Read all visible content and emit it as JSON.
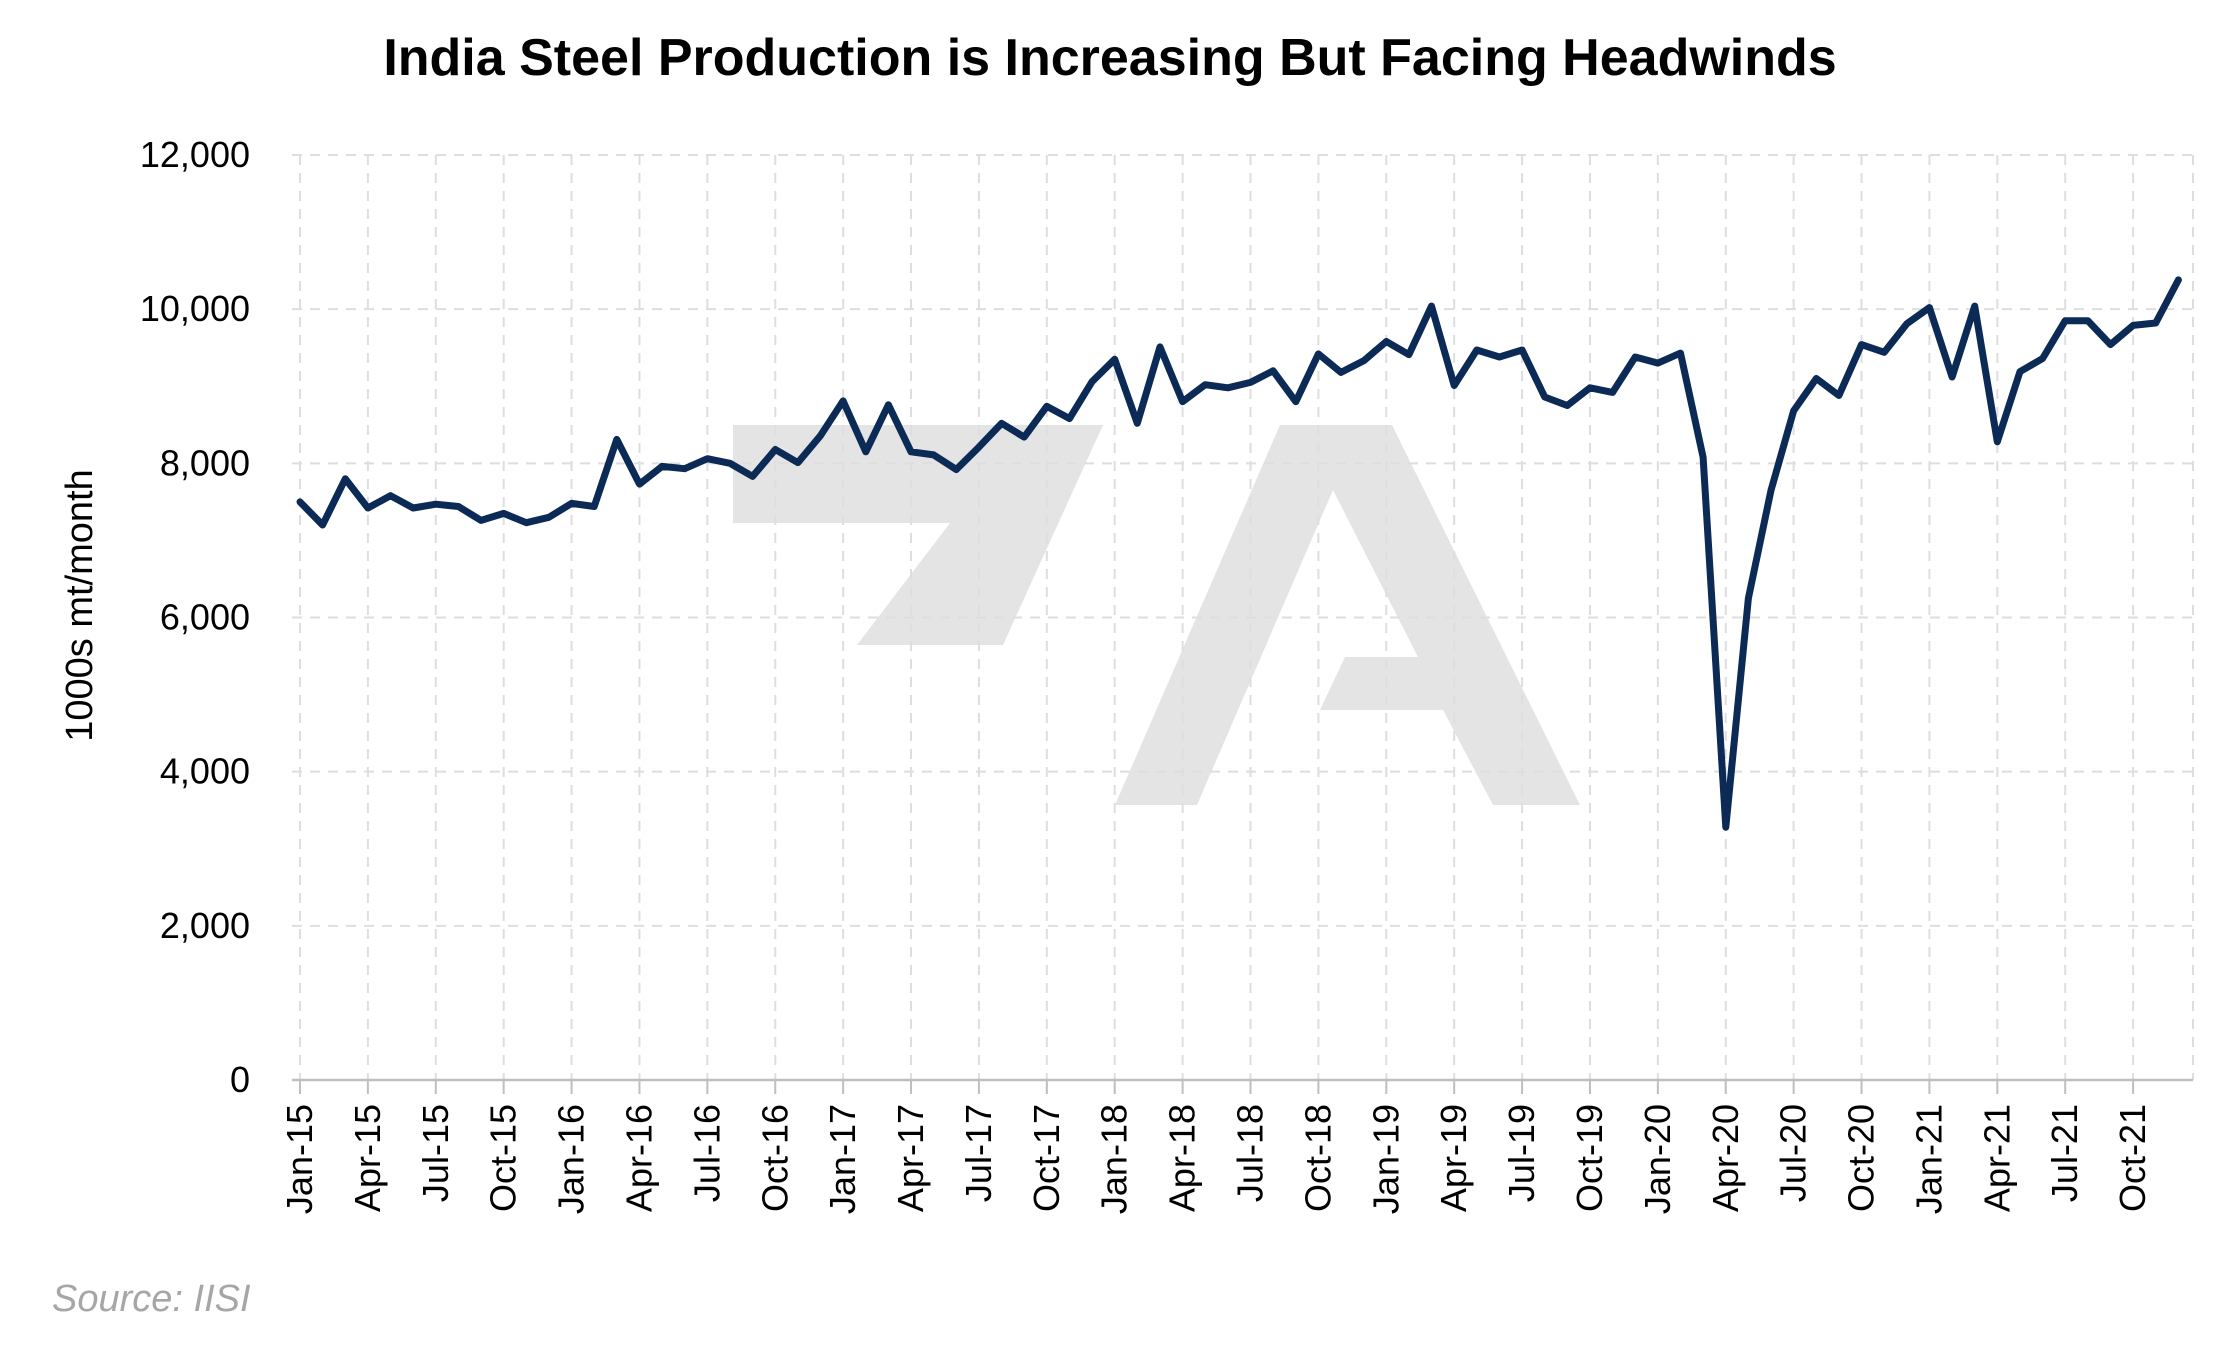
{
  "chart_data": {
    "type": "line",
    "title": "India Steel Production is Increasing But Facing Headwinds",
    "ylabel": "1000s mt/month",
    "xlabel": "",
    "ylim": [
      0,
      12000
    ],
    "yticks": [
      "0",
      "2,000",
      "4,000",
      "6,000",
      "8,000",
      "10,000",
      "12,000"
    ],
    "ytick_values": [
      0,
      2000,
      4000,
      6000,
      8000,
      10000,
      12000
    ],
    "xtick_labels": [
      "Jan-15",
      "Apr-15",
      "Jul-15",
      "Oct-15",
      "Jan-16",
      "Apr-16",
      "Jul-16",
      "Oct-16",
      "Jan-17",
      "Apr-17",
      "Jul-17",
      "Oct-17",
      "Jan-18",
      "Apr-18",
      "Jul-18",
      "Oct-18",
      "Jan-19",
      "Apr-19",
      "Jul-19",
      "Oct-19",
      "Jan-20",
      "Apr-20",
      "Jul-20",
      "Oct-20",
      "Jan-21",
      "Apr-21",
      "Jul-21",
      "Oct-21"
    ],
    "grid": true,
    "line_color": "#0b2a55",
    "series": [
      {
        "name": "",
        "x": [
          "Jan-15",
          "Feb-15",
          "Mar-15",
          "Apr-15",
          "May-15",
          "Jun-15",
          "Jul-15",
          "Aug-15",
          "Sep-15",
          "Oct-15",
          "Nov-15",
          "Dec-15",
          "Jan-16",
          "Feb-16",
          "Mar-16",
          "Apr-16",
          "May-16",
          "Jun-16",
          "Jul-16",
          "Aug-16",
          "Sep-16",
          "Oct-16",
          "Nov-16",
          "Dec-16",
          "Jan-17",
          "Feb-17",
          "Mar-17",
          "Apr-17",
          "May-17",
          "Jun-17",
          "Jul-17",
          "Aug-17",
          "Sep-17",
          "Oct-17",
          "Nov-17",
          "Dec-17",
          "Jan-18",
          "Feb-18",
          "Mar-18",
          "Apr-18",
          "May-18",
          "Jun-18",
          "Jul-18",
          "Aug-18",
          "Sep-18",
          "Oct-18",
          "Nov-18",
          "Dec-18",
          "Jan-19",
          "Feb-19",
          "Mar-19",
          "Apr-19",
          "May-19",
          "Jun-19",
          "Jul-19",
          "Aug-19",
          "Sep-19",
          "Oct-19",
          "Nov-19",
          "Dec-19",
          "Jan-20",
          "Feb-20",
          "Mar-20",
          "Apr-20",
          "May-20",
          "Jun-20",
          "Jul-20",
          "Aug-20",
          "Sep-20",
          "Oct-20",
          "Nov-20",
          "Dec-20",
          "Jan-21",
          "Feb-21",
          "Mar-21",
          "Apr-21",
          "May-21",
          "Jun-21",
          "Jul-21",
          "Aug-21",
          "Sep-21",
          "Oct-21",
          "Nov-21",
          "Dec-21"
        ],
        "values": [
          7500,
          7200,
          7800,
          7420,
          7580,
          7420,
          7470,
          7440,
          7260,
          7350,
          7230,
          7300,
          7480,
          7440,
          8310,
          7730,
          7960,
          7930,
          8060,
          8000,
          7830,
          8180,
          8010,
          8360,
          8810,
          8150,
          8760,
          8150,
          8110,
          7920,
          8210,
          8520,
          8340,
          8740,
          8580,
          9060,
          9350,
          8520,
          9510,
          8800,
          9020,
          8980,
          9050,
          9200,
          8800,
          9420,
          9180,
          9330,
          9580,
          9410,
          10040,
          9010,
          9470,
          9380,
          9470,
          8860,
          8750,
          8980,
          8920,
          9380,
          9300,
          9430,
          8080,
          3280,
          6250,
          7650,
          8680,
          9100,
          8880,
          9540,
          9440,
          9810,
          10020,
          9120,
          10040,
          8280,
          9190,
          9360,
          9850,
          9850,
          9540,
          9790,
          9820,
          10380
        ]
      }
    ]
  },
  "source": "Source: IISI"
}
